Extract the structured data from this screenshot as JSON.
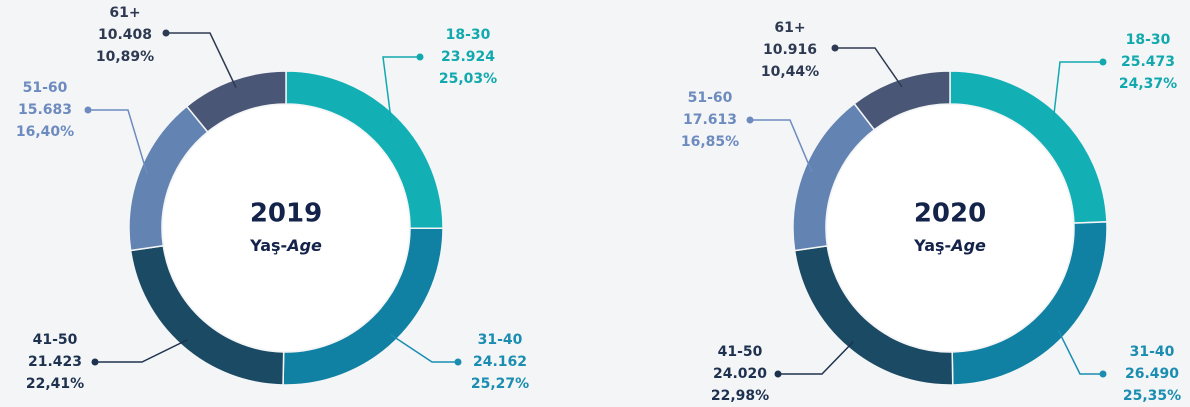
{
  "chart_data": [
    {
      "type": "donut",
      "title": "2019",
      "center_label": "Yaş-",
      "center_label_en": "Age",
      "categories": [
        "18-30",
        "31-40",
        "41-50",
        "51-60",
        "61+"
      ],
      "values": [
        23924,
        24162,
        21423,
        15683,
        10408
      ],
      "value_labels": [
        "23.924",
        "24.162",
        "21.423",
        "15.683",
        "10.408"
      ],
      "percent_labels": [
        "25,03%",
        "25,27%",
        "22,41%",
        "16,40%",
        "10,89%"
      ],
      "colors": [
        "#12b0b5",
        "#1181a3",
        "#1b4a64",
        "#6384b2",
        "#4a5675"
      ]
    },
    {
      "type": "donut",
      "title": "2020",
      "center_label": "Yaş-",
      "center_label_en": "Age",
      "categories": [
        "18-30",
        "31-40",
        "41-50",
        "51-60",
        "61+"
      ],
      "values": [
        25473,
        26490,
        24020,
        17613,
        10916
      ],
      "value_labels": [
        "25.473",
        "26.490",
        "24.020",
        "17.613",
        "10.916"
      ],
      "percent_labels": [
        "24,37%",
        "25,35%",
        "22,98%",
        "16,85%",
        "10,44%"
      ],
      "colors": [
        "#12b0b5",
        "#1181a3",
        "#1b4a64",
        "#6384b2",
        "#4a5675"
      ]
    }
  ]
}
